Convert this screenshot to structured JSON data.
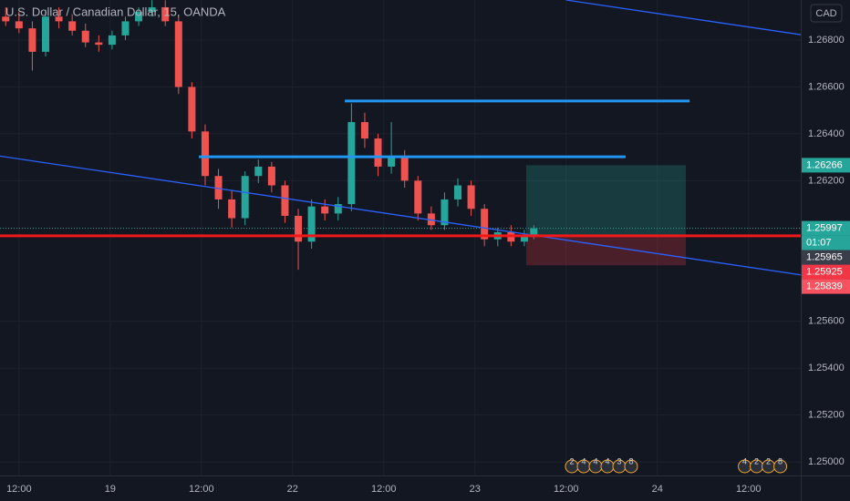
{
  "chart_data": {
    "type": "candlestick",
    "title": "U.S. Dollar / Canadian Dollar, 15, OANDA",
    "currency": "CAD",
    "x": [
      3,
      10,
      17,
      24,
      31,
      38,
      45,
      52,
      59,
      66,
      73,
      80,
      87,
      94,
      101,
      108,
      115,
      122,
      129,
      136,
      143,
      150,
      157,
      164,
      171,
      178,
      185,
      192,
      199,
      206,
      213,
      220,
      227,
      234,
      241,
      248,
      255,
      262,
      269,
      276,
      281
    ],
    "open": [
      1.269,
      1.2688,
      1.2685,
      1.2675,
      1.269,
      1.2688,
      1.2684,
      1.2679,
      1.2678,
      1.2682,
      1.2688,
      1.2692,
      1.2694,
      1.2688,
      1.266,
      1.2641,
      1.2622,
      1.2612,
      1.2604,
      1.2622,
      1.2626,
      1.2618,
      1.2605,
      1.2594,
      1.2609,
      1.2606,
      1.261,
      1.2645,
      1.2638,
      1.2626,
      1.263,
      1.262,
      1.2606,
      1.2601,
      1.2612,
      1.2618,
      1.2608,
      1.2595,
      1.2598,
      1.2594,
      1.2597
    ],
    "high": [
      1.2694,
      1.2692,
      1.2688,
      1.2693,
      1.2694,
      1.2691,
      1.2687,
      1.2682,
      1.2684,
      1.269,
      1.2694,
      1.2697,
      1.2697,
      1.269,
      1.2662,
      1.2644,
      1.2625,
      1.2616,
      1.2624,
      1.2629,
      1.2628,
      1.262,
      1.2608,
      1.2612,
      1.2612,
      1.2613,
      1.2653,
      1.2649,
      1.264,
      1.2645,
      1.2633,
      1.2622,
      1.2609,
      1.2615,
      1.2621,
      1.262,
      1.261,
      1.26,
      1.2601,
      1.2599,
      1.2601
    ],
    "low": [
      1.2686,
      1.2683,
      1.2667,
      1.2673,
      1.2685,
      1.2682,
      1.2677,
      1.2675,
      1.2676,
      1.268,
      1.2686,
      1.269,
      1.2686,
      1.2657,
      1.2638,
      1.2618,
      1.2608,
      1.26,
      1.2601,
      1.2619,
      1.2615,
      1.2602,
      1.2582,
      1.2591,
      1.2603,
      1.2603,
      1.2607,
      1.2634,
      1.2622,
      1.2623,
      1.2617,
      1.2603,
      1.2599,
      1.2599,
      1.2609,
      1.2605,
      1.2592,
      1.2592,
      1.2592,
      1.2592,
      1.2595
    ],
    "close": [
      1.2688,
      1.2685,
      1.2675,
      1.269,
      1.2688,
      1.2684,
      1.2679,
      1.2678,
      1.2682,
      1.2688,
      1.2692,
      1.2694,
      1.2688,
      1.266,
      1.2641,
      1.2622,
      1.2612,
      1.2604,
      1.2622,
      1.2626,
      1.2618,
      1.2605,
      1.2594,
      1.2609,
      1.2606,
      1.261,
      1.2645,
      1.2638,
      1.2626,
      1.263,
      1.262,
      1.2606,
      1.2601,
      1.2612,
      1.2618,
      1.2608,
      1.2595,
      1.2598,
      1.2594,
      1.2597,
      1.25997
    ],
    "up_color": "#26a69a",
    "down_color": "#ef5350",
    "xlim": [
      0,
      421.5
    ],
    "ylim": [
      1.24942,
      1.26971
    ],
    "xticks": [
      {
        "value": 10,
        "label": "12:00"
      },
      {
        "value": 58,
        "label": "19"
      },
      {
        "value": 106,
        "label": "12:00"
      },
      {
        "value": 154,
        "label": "22"
      },
      {
        "value": 202,
        "label": "12:00"
      },
      {
        "value": 250,
        "label": "23"
      },
      {
        "value": 298,
        "label": "12:00"
      },
      {
        "value": 346,
        "label": "24"
      },
      {
        "value": 394,
        "label": "12:00"
      }
    ],
    "yticks": [
      {
        "value": 1.268,
        "label": "1.26800"
      },
      {
        "value": 1.266,
        "label": "1.26600"
      },
      {
        "value": 1.264,
        "label": "1.26400"
      },
      {
        "value": 1.262,
        "label": "1.26200"
      },
      {
        "value": 1.256,
        "label": "1.25600"
      },
      {
        "value": 1.254,
        "label": "1.25400"
      },
      {
        "value": 1.252,
        "label": "1.25200"
      },
      {
        "value": 1.25,
        "label": "1.25000"
      }
    ],
    "grid": true,
    "trendlines": [
      {
        "color": "#2962ff",
        "x": [
          298,
          421.5
        ],
        "y": [
          1.26971,
          1.26823
        ]
      },
      {
        "color": "#2962ff",
        "x": [
          0,
          421.5
        ],
        "y": [
          1.26305,
          1.25798
        ]
      }
    ],
    "levels": [
      {
        "color": "#2196f3",
        "x": [
          181.5,
          363
        ],
        "y": 1.2654
      },
      {
        "color": "#2196f3",
        "x": [
          104.7,
          329.3
        ],
        "y": 1.26302
      },
      {
        "color": "#f01818",
        "x": [
          0,
          421.5
        ],
        "y": 1.25965
      }
    ],
    "position": {
      "x": [
        277,
        361
      ],
      "target": 1.26266,
      "entry": 1.25965,
      "stop": 1.25839
    },
    "price_labels": [
      {
        "value": 1.26266,
        "label": "1.26266",
        "color": "#26a69a"
      },
      {
        "value": 1.25997,
        "label": "1.25997",
        "color": "#26a69a"
      },
      {
        "label": "01:07",
        "color": "#26a69a"
      },
      {
        "value": 1.25965,
        "label": "1.25965",
        "color": "#3a3e4a"
      },
      {
        "value": 1.25925,
        "label": "1.25925",
        "color": "#f23645"
      },
      {
        "value": 1.25839,
        "label": "1.25839",
        "color": "#f7525f"
      }
    ],
    "events": [
      {
        "x": 301,
        "labels": [
          "2",
          "4",
          "4",
          "4",
          "3",
          "8"
        ]
      },
      {
        "x": 392,
        "labels": [
          "4",
          "2",
          "2",
          "8"
        ]
      }
    ]
  }
}
